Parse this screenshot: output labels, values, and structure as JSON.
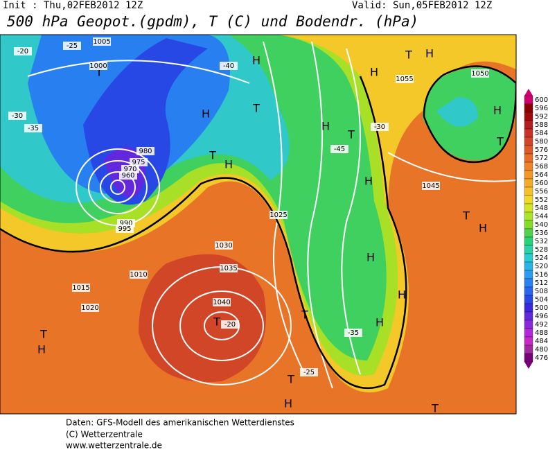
{
  "header": {
    "init": "Init : Thu,02FEB2012 12Z",
    "valid": "Valid: Sun,05FEB2012 12Z",
    "title": "500 hPa Geopot.(gpdm), T (C) und Bodendr. (hPa)"
  },
  "colorbar": {
    "ticks": [
      600,
      596,
      592,
      588,
      584,
      580,
      576,
      572,
      568,
      564,
      560,
      556,
      552,
      548,
      544,
      540,
      536,
      532,
      528,
      524,
      520,
      516,
      512,
      508,
      504,
      500,
      496,
      492,
      488,
      484,
      480,
      476
    ],
    "colors": [
      "#d2006e",
      "#8c0000",
      "#a00a0a",
      "#b41e1e",
      "#c83228",
      "#d24628",
      "#dc5a28",
      "#e66e28",
      "#f08228",
      "#f59628",
      "#f5aa28",
      "#f5c028",
      "#f0d828",
      "#d2e628",
      "#aae628",
      "#82dc28",
      "#50d250",
      "#28d278",
      "#28d2aa",
      "#28cdd2",
      "#28b4e6",
      "#289cf0",
      "#2882f0",
      "#2866f0",
      "#2848e6",
      "#3c28dc",
      "#6428dc",
      "#8c28dc",
      "#b428dc",
      "#c828c8",
      "#a028a0",
      "#780078"
    ]
  },
  "map": {
    "labels": [
      "H",
      "T",
      "H",
      "T",
      "T",
      "H",
      "H",
      "T",
      "H",
      "H",
      "T",
      "H",
      "H",
      "T",
      "T",
      "T",
      "H",
      "H",
      "T",
      "H",
      "T",
      "H",
      "H",
      "T",
      "H",
      "T",
      "1000",
      "1005",
      "1015",
      "1020",
      "1025",
      "1030",
      "1035",
      "1040",
      "1045",
      "1050",
      "1055",
      "1010",
      "990",
      "995",
      "980",
      "975",
      "970",
      "960",
      "-20",
      "-25",
      "-30",
      "-35",
      "-40",
      "-45",
      "-30",
      "-25",
      "-35",
      "-20"
    ]
  },
  "footer": {
    "line1": "Daten: GFS-Modell des amerikanischen Wetterdienstes",
    "line2": "(C) Wetterzentrale",
    "line3": "www.wetterzentrale.de"
  }
}
